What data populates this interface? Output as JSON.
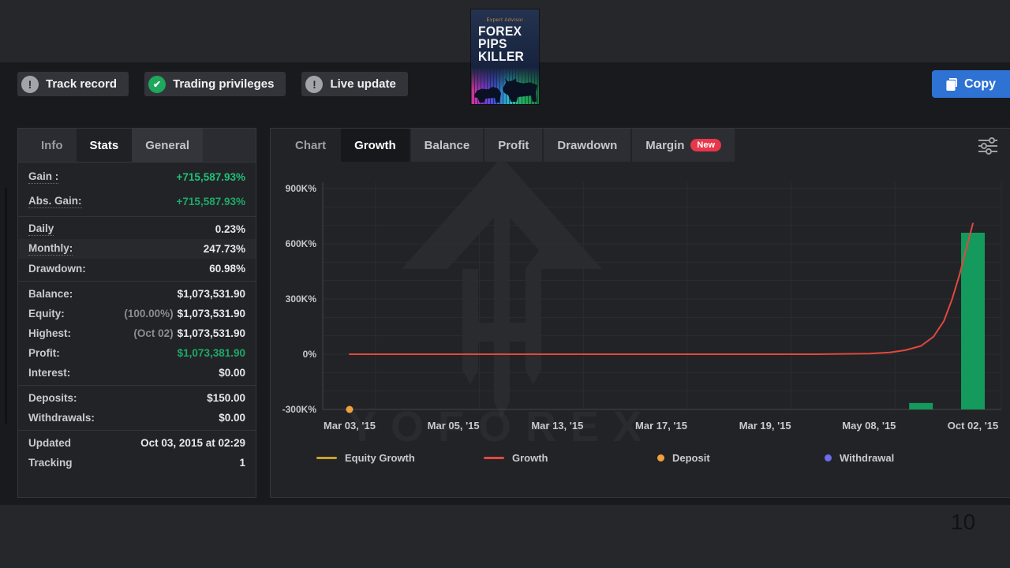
{
  "header": {
    "badges": [
      {
        "label": "Track record",
        "icon": "exclamation-icon"
      },
      {
        "label": "Trading privileges",
        "icon": "check-icon"
      },
      {
        "label": "Live update",
        "icon": "exclamation-icon"
      }
    ],
    "copy_button": {
      "label": "Copy",
      "icon": "copy-icon"
    }
  },
  "cover": {
    "subtitle": "Expert Advisor",
    "title_lines": [
      "FOREX",
      "PIPS",
      "KILLER"
    ]
  },
  "stats_panel": {
    "tabs": [
      {
        "label": "Info",
        "active": false
      },
      {
        "label": "Stats",
        "active": true
      },
      {
        "label": "General",
        "active": false
      }
    ],
    "groups": [
      {
        "rows": [
          {
            "label": "Gain :",
            "dotted": true,
            "value": "+715,587.93%",
            "style": "gain",
            "tall": true
          },
          {
            "label": "Abs. Gain:",
            "dotted": true,
            "value": "+715,587.93%",
            "style": "green",
            "tall": true
          }
        ]
      },
      {
        "rows": [
          {
            "label": "Daily",
            "dotted": true,
            "value": "0.23%"
          },
          {
            "label": "Monthly:",
            "dotted": true,
            "value": "247.73%",
            "alt": true
          },
          {
            "label": "Drawdown:",
            "value": "60.98%"
          }
        ]
      },
      {
        "rows": [
          {
            "label": "Balance:",
            "value": "$1,073,531.90"
          },
          {
            "label": "Equity:",
            "prefix": "(100.00%)",
            "value": "$1,073,531.90"
          },
          {
            "label": "Highest:",
            "prefix": "(Oct 02)",
            "value": "$1,073,531.90"
          },
          {
            "label": "Profit:",
            "value": "$1,073,381.90",
            "style": "green"
          },
          {
            "label": "Interest:",
            "value": "$0.00"
          }
        ]
      },
      {
        "rows": [
          {
            "label": "Deposits:",
            "value": "$150.00"
          },
          {
            "label": "Withdrawals:",
            "value": "$0.00"
          }
        ]
      },
      {
        "rows": [
          {
            "label": "Updated",
            "value": "Oct 03, 2015 at 02:29"
          },
          {
            "label": "Tracking",
            "value": "1"
          }
        ]
      }
    ]
  },
  "chart_panel": {
    "tabs": [
      {
        "label": "Chart"
      },
      {
        "label": "Growth",
        "active": true
      },
      {
        "label": "Balance",
        "chip": true
      },
      {
        "label": "Profit",
        "chip": true
      },
      {
        "label": "Drawdown",
        "chip": true
      },
      {
        "label": "Margin",
        "chip": true,
        "badge": "New"
      }
    ],
    "watermark_text": "YOFOREX"
  },
  "chart_data": {
    "type": "line",
    "title": "Growth",
    "x_categories": [
      "Mar 03, '15",
      "Mar 05, '15",
      "Mar 13, '15",
      "Mar 17, '15",
      "Mar 19, '15",
      "May 08, '15",
      "Oct 02, '15"
    ],
    "y_ticks": [
      {
        "value": 900,
        "label": "900K%"
      },
      {
        "value": 600,
        "label": "600K%"
      },
      {
        "value": 300,
        "label": "300K%"
      },
      {
        "value": 0,
        "label": "0%"
      },
      {
        "value": -300,
        "label": "-300K%"
      }
    ],
    "y_unit": "K%",
    "ylim": [
      -300,
      935
    ],
    "grid": true,
    "legend_position": "bottom",
    "series": [
      {
        "name": "Equity Growth",
        "type": "line",
        "color": "#c9a227",
        "points": []
      },
      {
        "name": "Growth",
        "type": "line",
        "color": "#e2483d",
        "points": [
          [
            0,
            0
          ],
          [
            1,
            0
          ],
          [
            2,
            0
          ],
          [
            3,
            0
          ],
          [
            4,
            0
          ],
          [
            4.5,
            0
          ],
          [
            5,
            3
          ],
          [
            5.2,
            10
          ],
          [
            5.35,
            22
          ],
          [
            5.5,
            45
          ],
          [
            5.62,
            95
          ],
          [
            5.72,
            180
          ],
          [
            5.8,
            300
          ],
          [
            5.87,
            430
          ],
          [
            5.93,
            560
          ],
          [
            6,
            710
          ]
        ]
      },
      {
        "name": "Deposit",
        "type": "scatter",
        "color": "#f0a13c",
        "points": [
          [
            0,
            -300
          ]
        ]
      },
      {
        "name": "Withdrawal",
        "type": "scatter",
        "color": "#6b6cf0",
        "points": []
      }
    ],
    "bars": {
      "name": "period-profit-bars",
      "color": "#149a5c",
      "baseline": -300,
      "items": [
        {
          "x": 5.5,
          "top": -265
        },
        {
          "x": 6,
          "top": 660
        }
      ]
    }
  },
  "page_number": "10"
}
